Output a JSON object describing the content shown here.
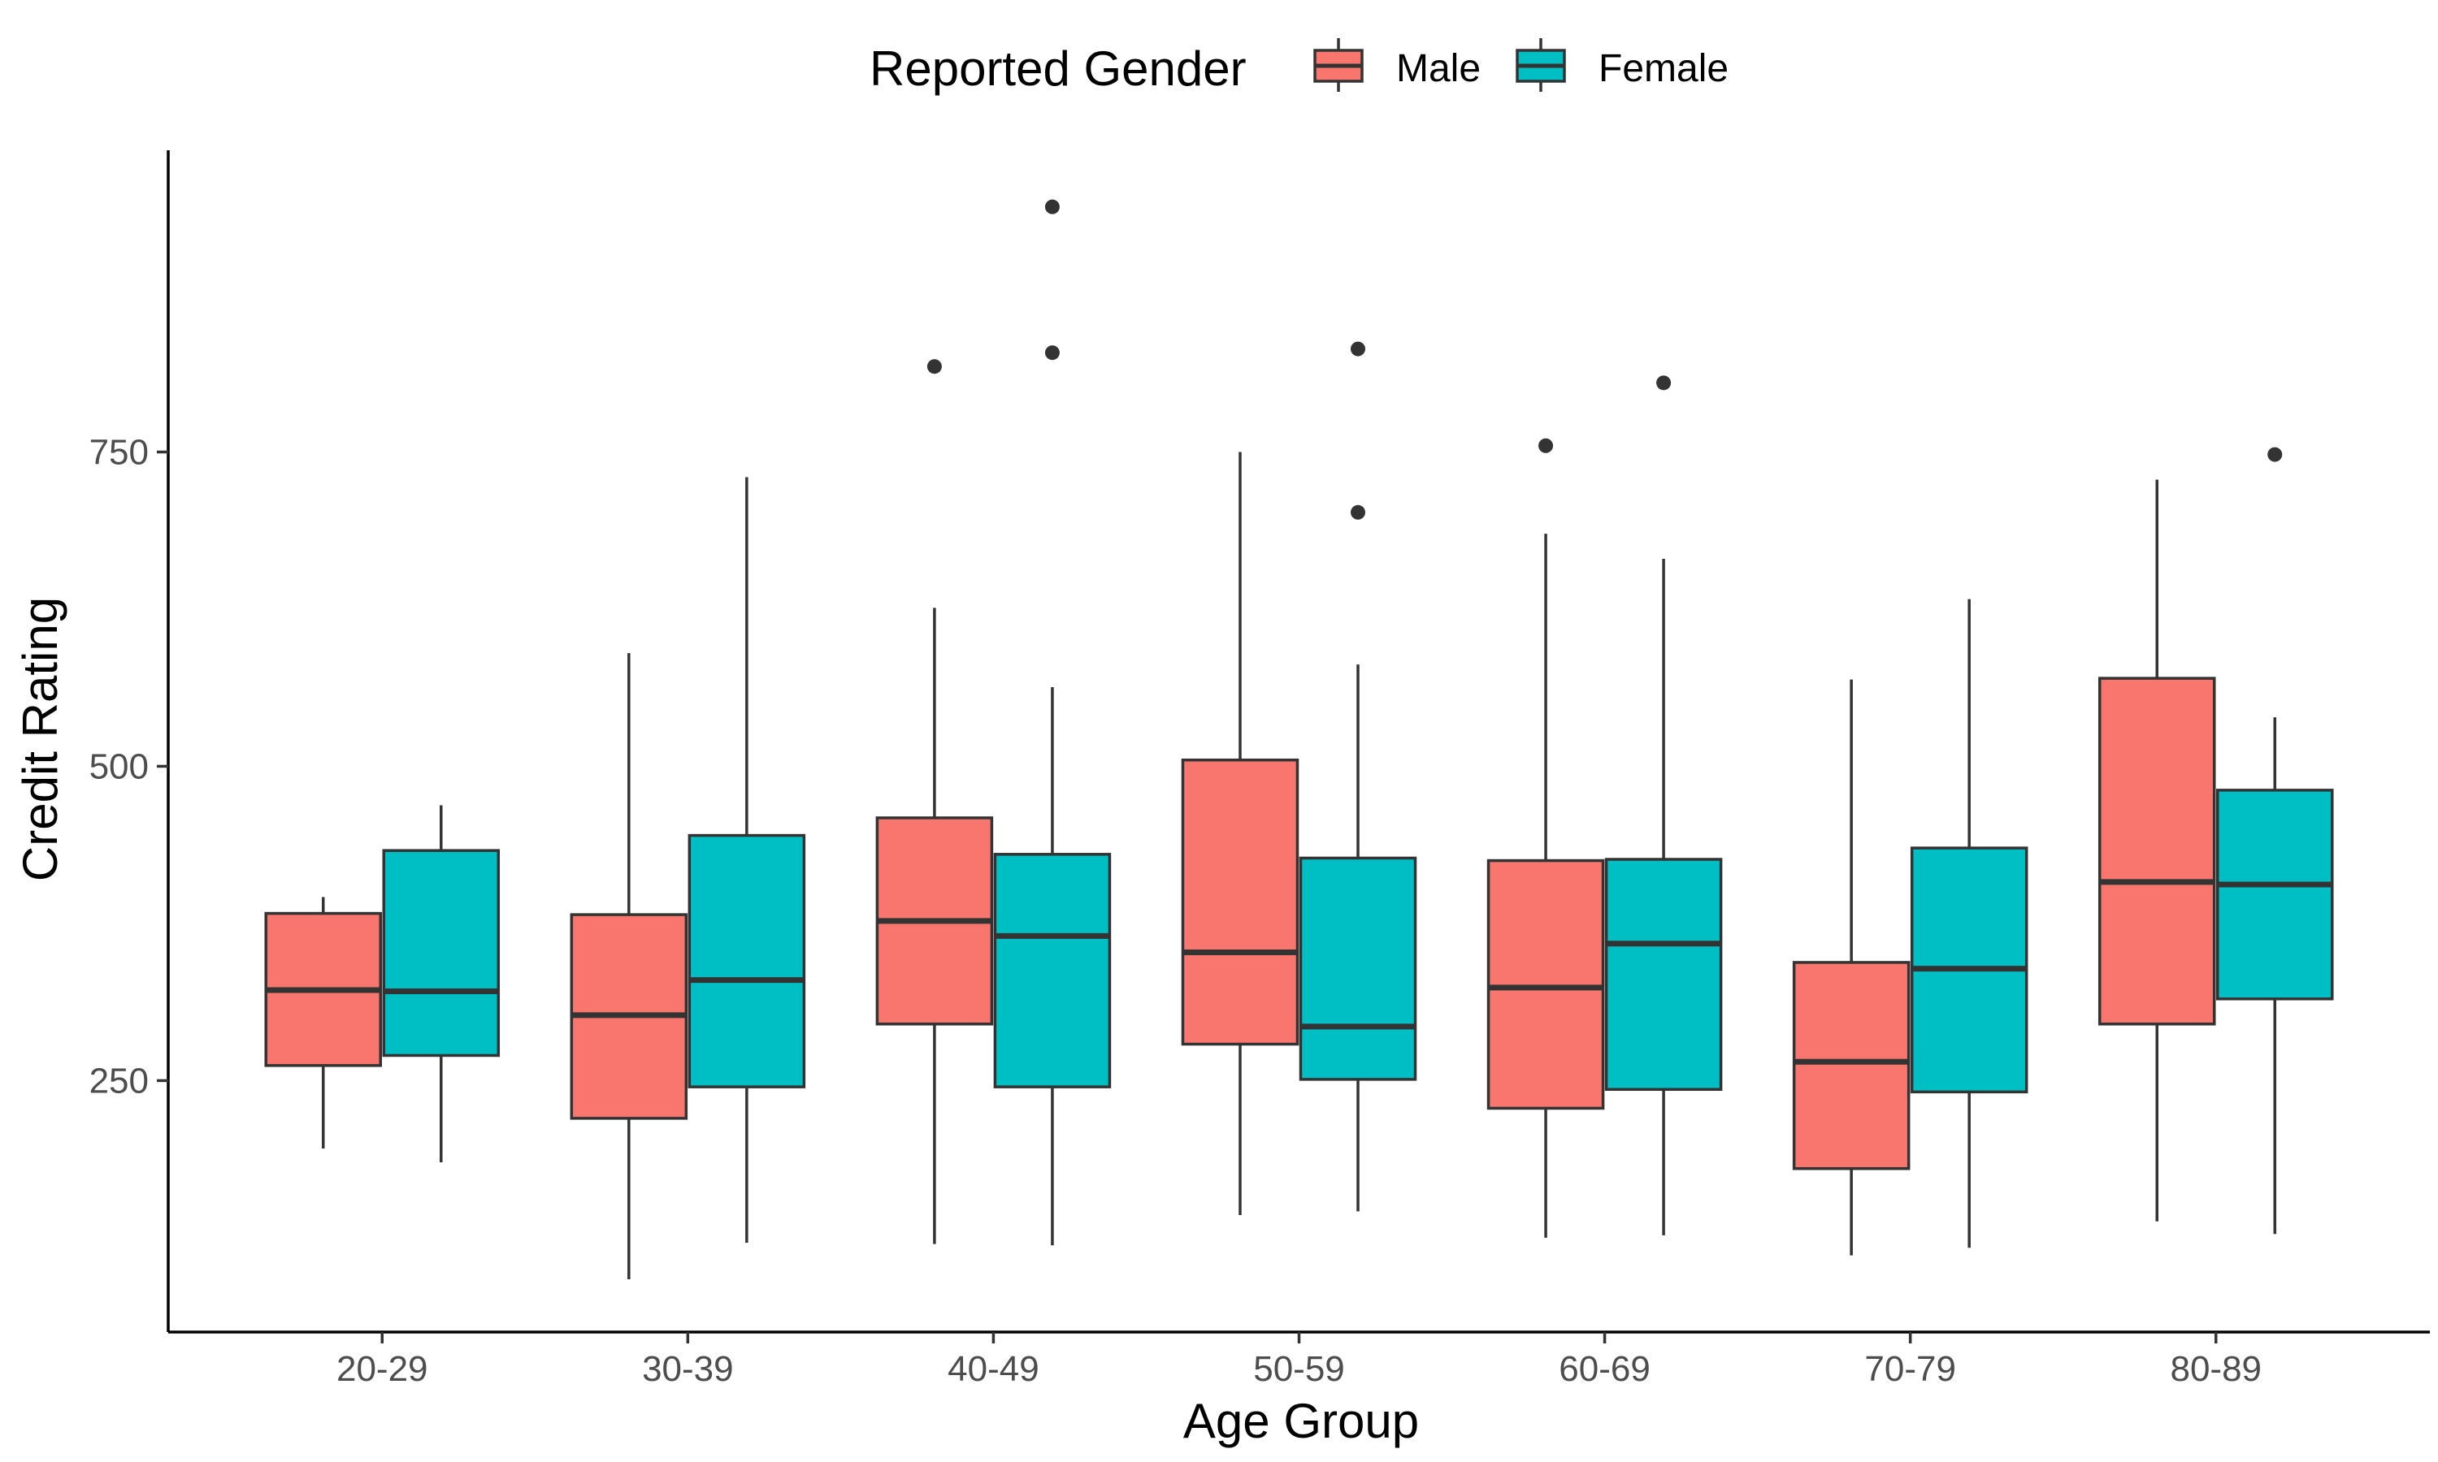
{
  "chart_data": {
    "type": "boxplot",
    "title": "",
    "xlabel": "Age Group",
    "ylabel": "Credit Rating",
    "ylim": [
      50,
      990
    ],
    "yticks": [
      250,
      500,
      750
    ],
    "grid": false,
    "legend": {
      "title": "Reported Gender",
      "position": "top",
      "entries": [
        "Male",
        "Female"
      ]
    },
    "categories": [
      "20-29",
      "30-39",
      "40-49",
      "50-59",
      "60-69",
      "70-79",
      "80-89"
    ],
    "series": [
      {
        "name": "Male",
        "color": "#F8766D",
        "boxes": [
          {
            "min": 196,
            "q1": 262,
            "median": 322,
            "q3": 383,
            "max": 396,
            "outliers": []
          },
          {
            "min": 92,
            "q1": 220,
            "median": 302,
            "q3": 382,
            "max": 590,
            "outliers": []
          },
          {
            "min": 120,
            "q1": 295,
            "median": 377,
            "q3": 459,
            "max": 626,
            "outliers": [
              818
            ]
          },
          {
            "min": 143,
            "q1": 279,
            "median": 352,
            "q3": 505,
            "max": 750,
            "outliers": []
          },
          {
            "min": 125,
            "q1": 228,
            "median": 324,
            "q3": 425,
            "max": 685,
            "outliers": [
              755
            ]
          },
          {
            "min": 111,
            "q1": 180,
            "median": 265,
            "q3": 344,
            "max": 569,
            "outliers": []
          },
          {
            "min": 138,
            "q1": 295,
            "median": 408,
            "q3": 570,
            "max": 728,
            "outliers": []
          }
        ]
      },
      {
        "name": "Female",
        "color": "#00BFC4",
        "boxes": [
          {
            "min": 185,
            "q1": 270,
            "median": 321,
            "q3": 433,
            "max": 469,
            "outliers": []
          },
          {
            "min": 121,
            "q1": 245,
            "median": 330,
            "q3": 445,
            "max": 730,
            "outliers": []
          },
          {
            "min": 119,
            "q1": 245,
            "median": 365,
            "q3": 430,
            "max": 563,
            "outliers": [
              829,
              945
            ]
          },
          {
            "min": 146,
            "q1": 251,
            "median": 293,
            "q3": 427,
            "max": 581,
            "outliers": [
              702,
              832
            ]
          },
          {
            "min": 127,
            "q1": 243,
            "median": 359,
            "q3": 426,
            "max": 665,
            "outliers": [
              805
            ]
          },
          {
            "min": 117,
            "q1": 241,
            "median": 339,
            "q3": 435,
            "max": 633,
            "outliers": []
          },
          {
            "min": 128,
            "q1": 315,
            "median": 406,
            "q3": 481,
            "max": 539,
            "outliers": [
              748
            ]
          }
        ]
      }
    ]
  }
}
